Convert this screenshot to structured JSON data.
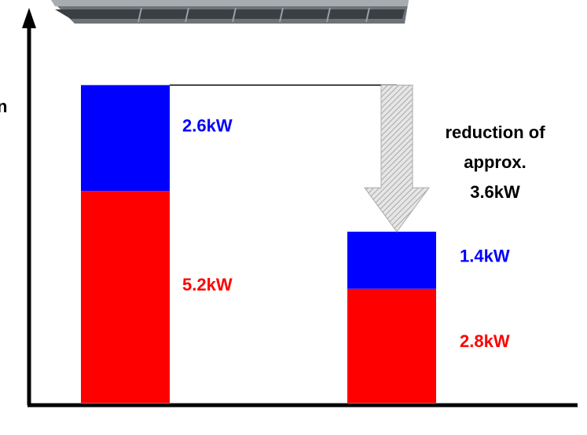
{
  "chart_data": {
    "type": "stacked-bar",
    "ylabel": "n",
    "categories": [
      null,
      null
    ],
    "series": [
      {
        "color": "#ff0000",
        "values": [
          5.2,
          2.8
        ],
        "value_labels": [
          "5.2kW",
          "2.8kW"
        ]
      },
      {
        "color": "#0000ff",
        "values": [
          2.6,
          1.4
        ],
        "value_labels": [
          "2.6kW",
          "1.4kW"
        ]
      }
    ],
    "ylim": [
      0,
      9.6
    ],
    "annotation": [
      "reduction of",
      "approx.",
      "3.6kW"
    ]
  }
}
